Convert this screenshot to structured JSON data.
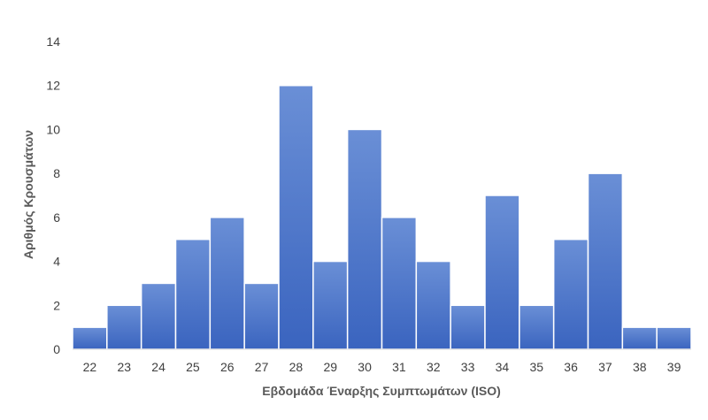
{
  "chart_data": {
    "type": "bar",
    "title": "",
    "xlabel": "Εβδομάδα Έναρξης Συμπτωμάτων (ISO)",
    "ylabel": "Αριθμός Κρουσμάτων",
    "categories": [
      "22",
      "23",
      "24",
      "25",
      "26",
      "27",
      "28",
      "29",
      "30",
      "31",
      "32",
      "33",
      "34",
      "35",
      "36",
      "37",
      "38",
      "39"
    ],
    "values": [
      1,
      2,
      3,
      5,
      6,
      3,
      12,
      4,
      10,
      6,
      4,
      2,
      7,
      2,
      5,
      8,
      1,
      1
    ],
    "ylim": [
      0,
      14
    ],
    "yticks": [
      "0",
      "2",
      "4",
      "6",
      "8",
      "10",
      "12",
      "14"
    ],
    "grid": false,
    "legend": "none",
    "bar_color": "#4472C4"
  }
}
